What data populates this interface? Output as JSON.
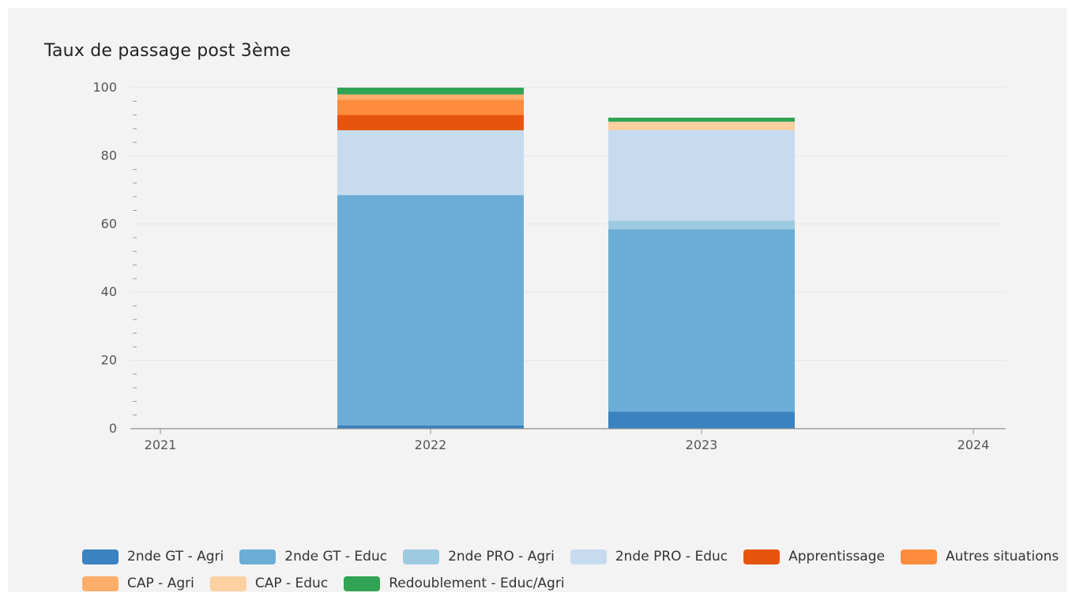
{
  "chart_data": {
    "type": "bar",
    "stacked": true,
    "title": "Taux de passage post 3ème",
    "xlabel": "",
    "ylabel": "",
    "categories": [
      "2021",
      "2022",
      "2023",
      "2024"
    ],
    "ylim": [
      0,
      100
    ],
    "yticks": [
      "0",
      "20",
      "40",
      "60",
      "80",
      "100"
    ],
    "grid": true,
    "legend_position": "bottom",
    "series": [
      {
        "name": "2nde GT - Agri",
        "color": "#3a82c0",
        "values": [
          0,
          1,
          5,
          0
        ]
      },
      {
        "name": "2nde GT - Educ",
        "color": "#6badd6",
        "values": [
          0,
          67.5,
          53.5,
          0
        ]
      },
      {
        "name": "2nde PRO - Agri",
        "color": "#9ecae1",
        "values": [
          0,
          0,
          2.5,
          0
        ]
      },
      {
        "name": "2nde PRO - Educ",
        "color": "#c6dbef",
        "values": [
          0,
          19,
          26.5,
          0
        ]
      },
      {
        "name": "Apprentissage",
        "color": "#e6550d",
        "values": [
          0,
          4.5,
          0,
          0
        ]
      },
      {
        "name": "Autres situations",
        "color": "#fd8d3c",
        "values": [
          0,
          4.5,
          0,
          0
        ]
      },
      {
        "name": "CAP - Agri",
        "color": "#fdae6b",
        "values": [
          0,
          1.5,
          0,
          0
        ]
      },
      {
        "name": "CAP - Educ",
        "color": "#fdd0a2",
        "values": [
          0,
          0,
          2.5,
          0
        ]
      },
      {
        "name": "Redoublement - Educ/Agri",
        "color": "#31a354",
        "values": [
          0,
          2,
          1.2,
          0
        ]
      }
    ]
  }
}
